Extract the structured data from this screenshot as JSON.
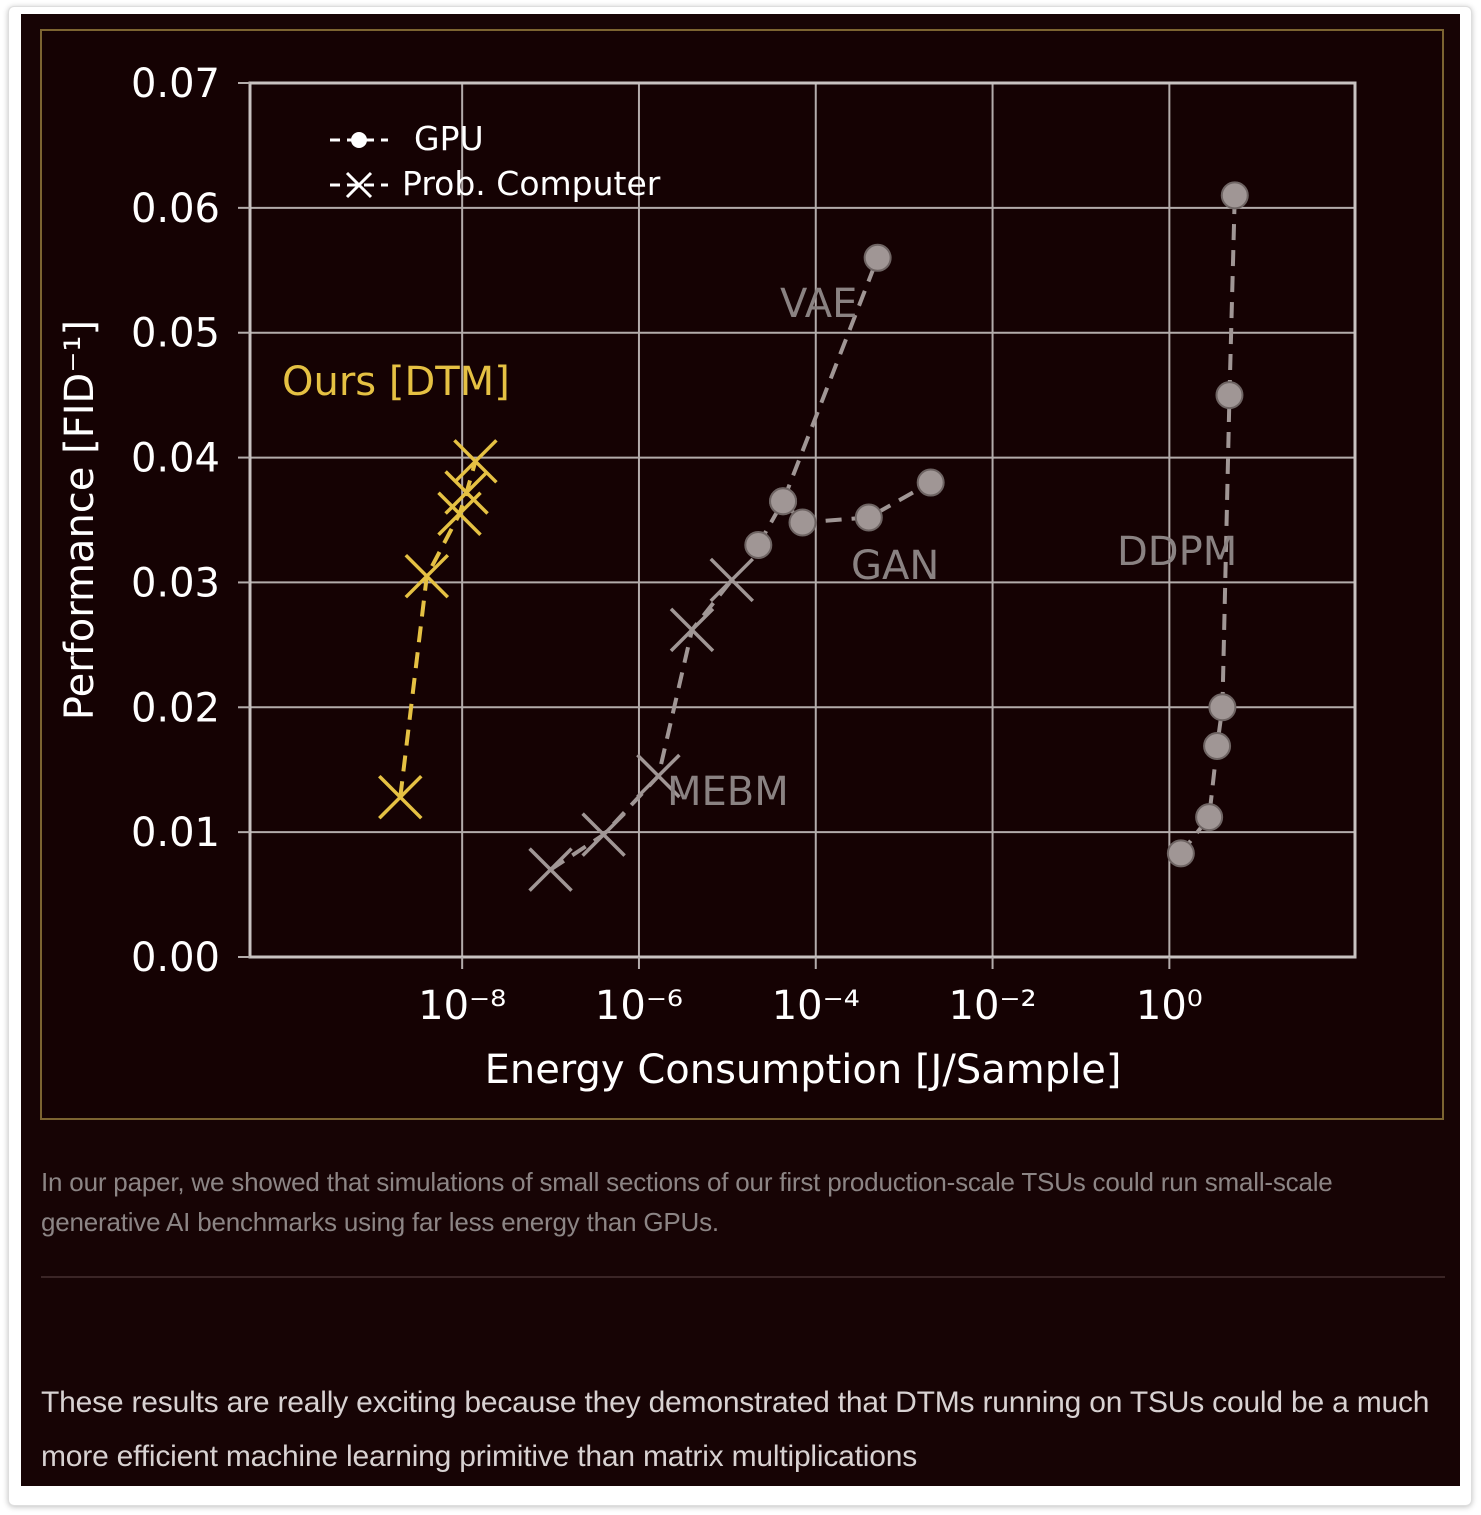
{
  "colors": {
    "background": "#170405",
    "chart_border": "#7c6431",
    "dtm": "#e5c143",
    "gpu_series": "#a09695",
    "prob_series": "#a09695",
    "grid": "#b3acab",
    "text": "#ffffff",
    "annotation": "#8a8282"
  },
  "chart_data": {
    "type": "scatter",
    "title": "",
    "xlabel": "Energy Consumption [J/Sample]",
    "ylabel": "Performance [FID⁻¹]",
    "xscale": "log",
    "xlim_log10": [
      -10.4,
      2.1
    ],
    "ylim": [
      0.0,
      0.07
    ],
    "grid": true,
    "x_ticks": [
      {
        "exp": -8,
        "label": "10⁻⁸"
      },
      {
        "exp": -6,
        "label": "10⁻⁶"
      },
      {
        "exp": -4,
        "label": "10⁻⁴"
      },
      {
        "exp": -2,
        "label": "10⁻²"
      },
      {
        "exp": 0,
        "label": "10⁰"
      }
    ],
    "y_ticks": [
      "0.00",
      "0.01",
      "0.02",
      "0.03",
      "0.04",
      "0.05",
      "0.06",
      "0.07"
    ],
    "y_tick_values": [
      0.0,
      0.01,
      0.02,
      0.03,
      0.04,
      0.05,
      0.06,
      0.07
    ],
    "legend": {
      "placement": "top-left",
      "entries": [
        {
          "label": "GPU",
          "marker": "circle"
        },
        {
          "label": "Prob. Computer",
          "marker": "x"
        }
      ]
    },
    "series": [
      {
        "name": "Ours [DTM]",
        "hardware": "Prob. Computer",
        "marker": "x",
        "color": "#e5c143",
        "log10_x": [
          -8.7,
          -8.4,
          -8.03,
          -7.95,
          -7.85
        ],
        "y": [
          0.0128,
          0.0305,
          0.0355,
          0.0372,
          0.0397
        ]
      },
      {
        "name": "MEBM",
        "hardware": "Prob. Computer",
        "marker": "x",
        "color": "#a09695",
        "log10_x": [
          -7.0,
          -6.4,
          -5.78,
          -5.4,
          -4.95
        ],
        "y": [
          0.007,
          0.0098,
          0.0145,
          0.0262,
          0.0302
        ]
      },
      {
        "name": "VAE",
        "hardware": "GPU",
        "marker": "circle",
        "color": "#a09695",
        "log10_x": [
          -4.65,
          -4.37,
          -3.3
        ],
        "y": [
          0.033,
          0.0365,
          0.056
        ]
      },
      {
        "name": "GAN",
        "hardware": "GPU",
        "marker": "circle",
        "color": "#a09695",
        "log10_x": [
          -4.37,
          -4.15,
          -3.4,
          -2.7
        ],
        "y": [
          0.0365,
          0.0348,
          0.0352,
          0.038
        ]
      },
      {
        "name": "DDPM",
        "hardware": "GPU",
        "marker": "circle",
        "color": "#a09695",
        "log10_x": [
          0.13,
          0.45,
          0.54,
          0.6,
          0.68,
          0.74
        ],
        "y": [
          0.0083,
          0.0112,
          0.0169,
          0.02,
          0.045,
          0.061
        ]
      }
    ],
    "annotations": [
      {
        "text": "Ours [DTM]",
        "series": "Ours [DTM]",
        "color": "#e5c143"
      },
      {
        "text": "VAE",
        "series": "VAE",
        "color": "#8a8282"
      },
      {
        "text": "GAN",
        "series": "GAN",
        "color": "#8a8282"
      },
      {
        "text": "MEBM",
        "series": "MEBM",
        "color": "#8a8282"
      },
      {
        "text": "DDPM",
        "series": "DDPM",
        "color": "#8a8282"
      }
    ]
  },
  "caption": "In our paper, we showed that simulations of small sections of our first production-scale TSUs could run small-scale generative AI benchmarks using far less energy than GPUs.",
  "body_text": "These results are really exciting because they demonstrated that DTMs running on TSUs could be a much more efficient machine learning primitive than matrix multiplications"
}
